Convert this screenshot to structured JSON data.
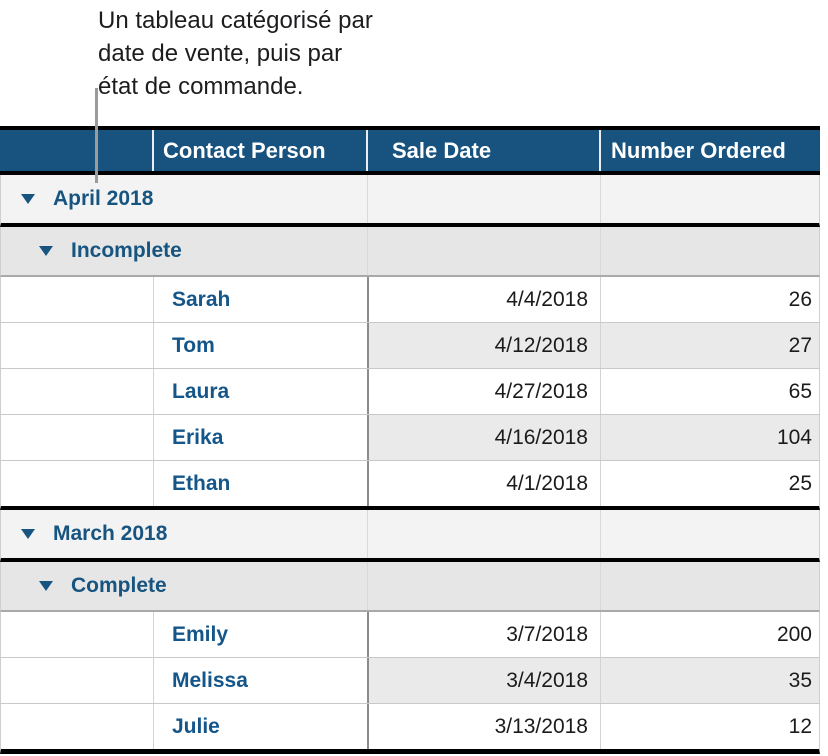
{
  "caption": {
    "lines": [
      "Un tableau catégorisé par",
      "date de vente, puis par",
      "état de commande."
    ]
  },
  "table": {
    "columns": [
      "",
      "Contact Person",
      "Sale Date",
      "Number Ordered"
    ],
    "groups": [
      {
        "category": {
          "label": "April 2018",
          "icon": "triangle-down-icon"
        },
        "subcategory": {
          "label": "Incomplete",
          "icon": "triangle-down-icon"
        },
        "rows": [
          {
            "contact_person": "Sarah",
            "sale_date": "4/4/2018",
            "number_ordered": "26"
          },
          {
            "contact_person": "Tom",
            "sale_date": "4/12/2018",
            "number_ordered": "27"
          },
          {
            "contact_person": "Laura",
            "sale_date": "4/27/2018",
            "number_ordered": "65"
          },
          {
            "contact_person": "Erika",
            "sale_date": "4/16/2018",
            "number_ordered": "104"
          },
          {
            "contact_person": "Ethan",
            "sale_date": "4/1/2018",
            "number_ordered": "25"
          }
        ]
      },
      {
        "category": {
          "label": "March 2018",
          "icon": "triangle-down-icon"
        },
        "subcategory": {
          "label": "Complete",
          "icon": "triangle-down-icon"
        },
        "rows": [
          {
            "contact_person": "Emily",
            "sale_date": "3/7/2018",
            "number_ordered": "200"
          },
          {
            "contact_person": "Melissa",
            "sale_date": "3/4/2018",
            "number_ordered": "35"
          },
          {
            "contact_person": "Julie",
            "sale_date": "3/13/2018",
            "number_ordered": "12"
          }
        ]
      }
    ]
  },
  "colors": {
    "header_bg": "#17537e",
    "header_text": "#ffffff",
    "category_text": "#17547f",
    "name_text": "#14568a",
    "stripe_bg": "#eaeaea",
    "category1_bg": "#f3f3f3",
    "category2_bg": "#e6e6e6",
    "callout_line": "#9b9b9b",
    "section_border": "#000000"
  }
}
